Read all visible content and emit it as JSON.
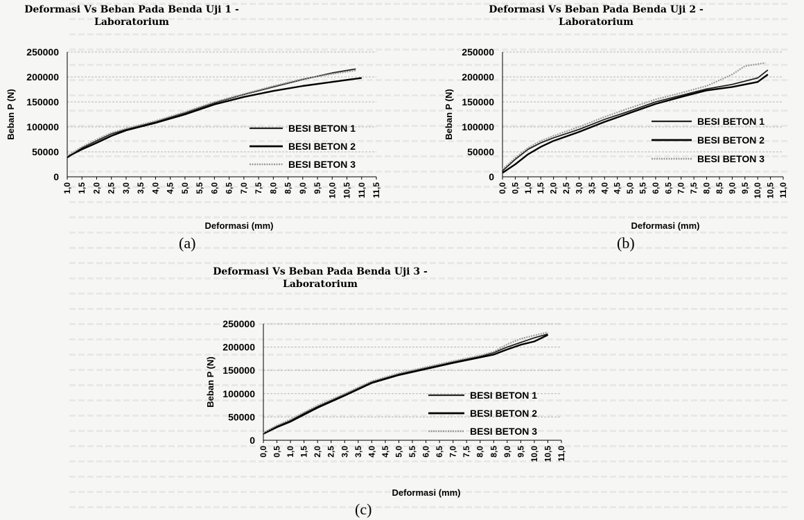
{
  "colors": {
    "series1": "#222222",
    "series2": "#000000",
    "series3": "#9a9a9a",
    "grid": "#b5b5b5",
    "axis": "#000000",
    "background": "#f6f6f4"
  },
  "captions": [
    "(a)",
    "(b)",
    "(c)"
  ],
  "chart_data": [
    {
      "type": "line",
      "title_lines": [
        "Deformasi Vs Beban  Pada Benda Uji 1 -",
        "Laboratorium"
      ],
      "xlabel": "Deformasi (mm)",
      "ylabel": "Beban P (N)",
      "ylim": [
        0,
        250000
      ],
      "xlim": [
        1.0,
        11.5
      ],
      "yticks": [
        "250000",
        "200000",
        "150000",
        "100000",
        "50000",
        "0"
      ],
      "xticks": [
        "1,0",
        "1,5",
        "2,0",
        "2,5",
        "3,0",
        "3,5",
        "4,0",
        "4,5",
        "5,0",
        "5,5",
        "6,0",
        "6,5",
        "7,0",
        "7,5",
        "8,0",
        "8,5",
        "9,0",
        "9,5",
        "10,0",
        "10,5",
        "11,0",
        "11,5"
      ],
      "grid": "horizontal",
      "legend_position": "right",
      "series": [
        {
          "name": "BESI BETON 1",
          "x": [
            1.0,
            1.5,
            2.0,
            2.5,
            3.0,
            4.0,
            5.0,
            6.0,
            7.0,
            8.0,
            9.0,
            10.0,
            10.8
          ],
          "y": [
            38000,
            58000,
            72000,
            86000,
            95000,
            110000,
            128000,
            148000,
            165000,
            180000,
            195000,
            208000,
            216000
          ]
        },
        {
          "name": "BESI BETON 2",
          "x": [
            1.0,
            1.5,
            2.0,
            2.5,
            3.0,
            4.0,
            5.0,
            6.0,
            7.0,
            8.0,
            9.0,
            10.0,
            11.0
          ],
          "y": [
            40000,
            55000,
            68000,
            82000,
            93000,
            108000,
            125000,
            145000,
            160000,
            172000,
            182000,
            190000,
            198000
          ]
        },
        {
          "name": "BESI BETON 3",
          "x": [
            1.0,
            1.5,
            2.0,
            2.5,
            3.0,
            4.0,
            5.0,
            6.0,
            7.0,
            8.0,
            9.0,
            10.0,
            10.8
          ],
          "y": [
            42000,
            60000,
            75000,
            88000,
            97000,
            112000,
            130000,
            150000,
            166000,
            182000,
            196000,
            206000,
            213000
          ]
        }
      ]
    },
    {
      "type": "line",
      "title_lines": [
        "Deformasi Vs Beban  Pada Benda Uji 2 -",
        "Laboratorium"
      ],
      "xlabel": "Deformasi (mm)",
      "ylabel": "Beban P (N)",
      "ylim": [
        0,
        250000
      ],
      "xlim": [
        0.0,
        11.0
      ],
      "yticks": [
        "250000",
        "200000",
        "150000",
        "100000",
        "50000",
        "0"
      ],
      "xticks": [
        "0,0",
        "0,5",
        "1,0",
        "1,5",
        "2,0",
        "2,5",
        "3,0",
        "3,5",
        "4,0",
        "4,5",
        "5,0",
        "5,5",
        "6,0",
        "6,5",
        "7,0",
        "7,5",
        "8,0",
        "8,5",
        "9,0",
        "9,5",
        "10,0",
        "10,5",
        "11,0"
      ],
      "grid": "horizontal",
      "legend_position": "right",
      "series": [
        {
          "name": "BESI BETON 1",
          "x": [
            0.0,
            0.5,
            1.0,
            1.5,
            2.0,
            3.0,
            4.0,
            5.0,
            6.0,
            7.0,
            8.0,
            9.0,
            10.0,
            10.4
          ],
          "y": [
            12000,
            35000,
            55000,
            68000,
            78000,
            95000,
            115000,
            132000,
            150000,
            163000,
            176000,
            185000,
            198000,
            214000
          ]
        },
        {
          "name": "BESI BETON 2",
          "x": [
            0.0,
            0.5,
            1.0,
            1.5,
            2.0,
            3.0,
            4.0,
            5.0,
            6.0,
            7.0,
            8.0,
            9.0,
            10.0,
            10.4
          ],
          "y": [
            8000,
            25000,
            45000,
            60000,
            72000,
            90000,
            110000,
            128000,
            146000,
            160000,
            173000,
            180000,
            190000,
            205000
          ]
        },
        {
          "name": "BESI BETON 3",
          "x": [
            0.0,
            0.5,
            1.0,
            1.5,
            2.0,
            3.0,
            4.0,
            5.0,
            6.0,
            7.0,
            8.0,
            9.0,
            9.5,
            10.3
          ],
          "y": [
            15000,
            38000,
            58000,
            72000,
            82000,
            100000,
            120000,
            138000,
            155000,
            168000,
            182000,
            205000,
            222000,
            228000
          ]
        }
      ]
    },
    {
      "type": "line",
      "title_lines": [
        "Deformasi Vs Beban  Pada Benda Uji 3 -",
        "Laboratorium"
      ],
      "xlabel": "Deformasi (mm)",
      "ylabel": "Beban P (N)",
      "ylim": [
        0,
        250000
      ],
      "xlim": [
        0.0,
        11.0
      ],
      "yticks": [
        "250000",
        "200000",
        "150000",
        "100000",
        "50000",
        "0"
      ],
      "xticks": [
        "0,0",
        "0,5",
        "1,0",
        "1,5",
        "2,0",
        "2,5",
        "3,0",
        "3,5",
        "4,0",
        "4,5",
        "5,0",
        "5,5",
        "6,0",
        "6,5",
        "7,0",
        "7,5",
        "8,0",
        "8,5",
        "9,0",
        "9,5",
        "10,0",
        "10,5",
        "11,0"
      ],
      "grid": "horizontal",
      "legend_position": "right",
      "series": [
        {
          "name": "BESI BETON 1",
          "x": [
            0.0,
            0.5,
            1.0,
            1.5,
            2.0,
            3.0,
            4.0,
            5.0,
            6.0,
            7.0,
            8.0,
            8.5,
            9.0,
            9.5,
            10.0,
            10.5
          ],
          "y": [
            15000,
            30000,
            42000,
            58000,
            72000,
            98000,
            125000,
            142000,
            155000,
            168000,
            180000,
            188000,
            200000,
            210000,
            220000,
            228000
          ]
        },
        {
          "name": "BESI BETON 2",
          "x": [
            0.0,
            0.5,
            1.0,
            1.5,
            2.0,
            3.0,
            4.0,
            5.0,
            6.0,
            7.0,
            8.0,
            8.5,
            9.0,
            9.5,
            10.0,
            10.5
          ],
          "y": [
            14000,
            28000,
            40000,
            55000,
            70000,
            96000,
            123000,
            140000,
            153000,
            166000,
            178000,
            184000,
            195000,
            205000,
            212000,
            226000
          ]
        },
        {
          "name": "BESI BETON 3",
          "x": [
            0.0,
            0.5,
            1.0,
            1.5,
            2.0,
            3.0,
            4.0,
            5.0,
            6.0,
            7.0,
            8.0,
            8.5,
            9.0,
            9.5,
            10.0,
            10.5
          ],
          "y": [
            16000,
            32000,
            45000,
            60000,
            75000,
            100000,
            127000,
            144000,
            157000,
            170000,
            182000,
            190000,
            206000,
            218000,
            225000,
            232000
          ]
        }
      ]
    }
  ]
}
